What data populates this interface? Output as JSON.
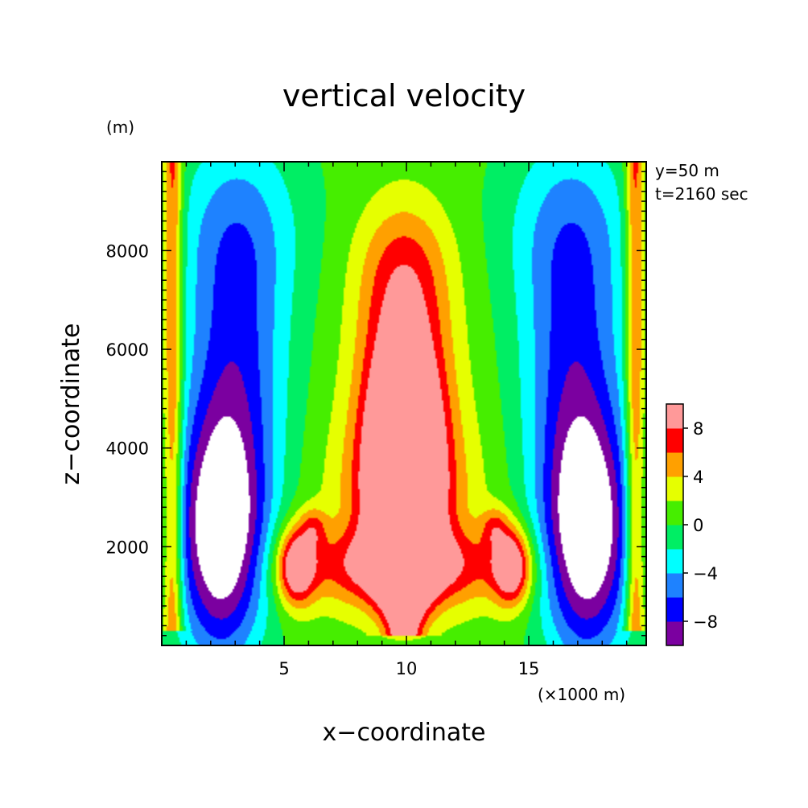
{
  "chart_data": {
    "type": "heatmap",
    "subtype": "filled-contour",
    "title": "vertical velocity",
    "xlabel": "x−coordinate",
    "ylabel": "z−coordinate",
    "x_unit": "(×1000 m)",
    "y_unit": "(m)",
    "annotations": [
      "y=50 m",
      "t=2160 sec"
    ],
    "xlim": [
      0,
      19.8
    ],
    "ylim": [
      0,
      9800
    ],
    "x_ticks": [
      5,
      10,
      15
    ],
    "x_tick_labels": [
      "5",
      "10",
      "15"
    ],
    "y_ticks": [
      2000,
      4000,
      6000,
      8000
    ],
    "y_tick_labels": [
      "2000",
      "4000",
      "6000",
      "8000"
    ],
    "colorbar": {
      "levels": [
        -10,
        -8,
        -6,
        -4,
        -2,
        0,
        2,
        4,
        6,
        8,
        10
      ],
      "labels": [
        "−8",
        "−4",
        "0",
        "4",
        "8"
      ],
      "label_values": [
        -8,
        -4,
        0,
        4,
        8
      ],
      "colors": [
        "#7b00a0",
        "#0000ff",
        "#1e82ff",
        "#00ffff",
        "#00ee64",
        "#46ee00",
        "#e6ff00",
        "#ffa000",
        "#ff0000",
        "#ff9999"
      ]
    },
    "under_color": "#ffffff",
    "features": [
      {
        "kind": "updraft",
        "x": 10,
        "z": 3800,
        "w_max": 10
      },
      {
        "kind": "updraft",
        "x": 5.5,
        "z": 1600,
        "w_max": 10
      },
      {
        "kind": "updraft",
        "x": 14.5,
        "z": 1600,
        "w_max": 10
      },
      {
        "kind": "downdraft",
        "x": 2.4,
        "z": 2200,
        "w_min": -10
      },
      {
        "kind": "downdraft",
        "x": 17.6,
        "z": 2200,
        "w_min": -10
      }
    ]
  }
}
